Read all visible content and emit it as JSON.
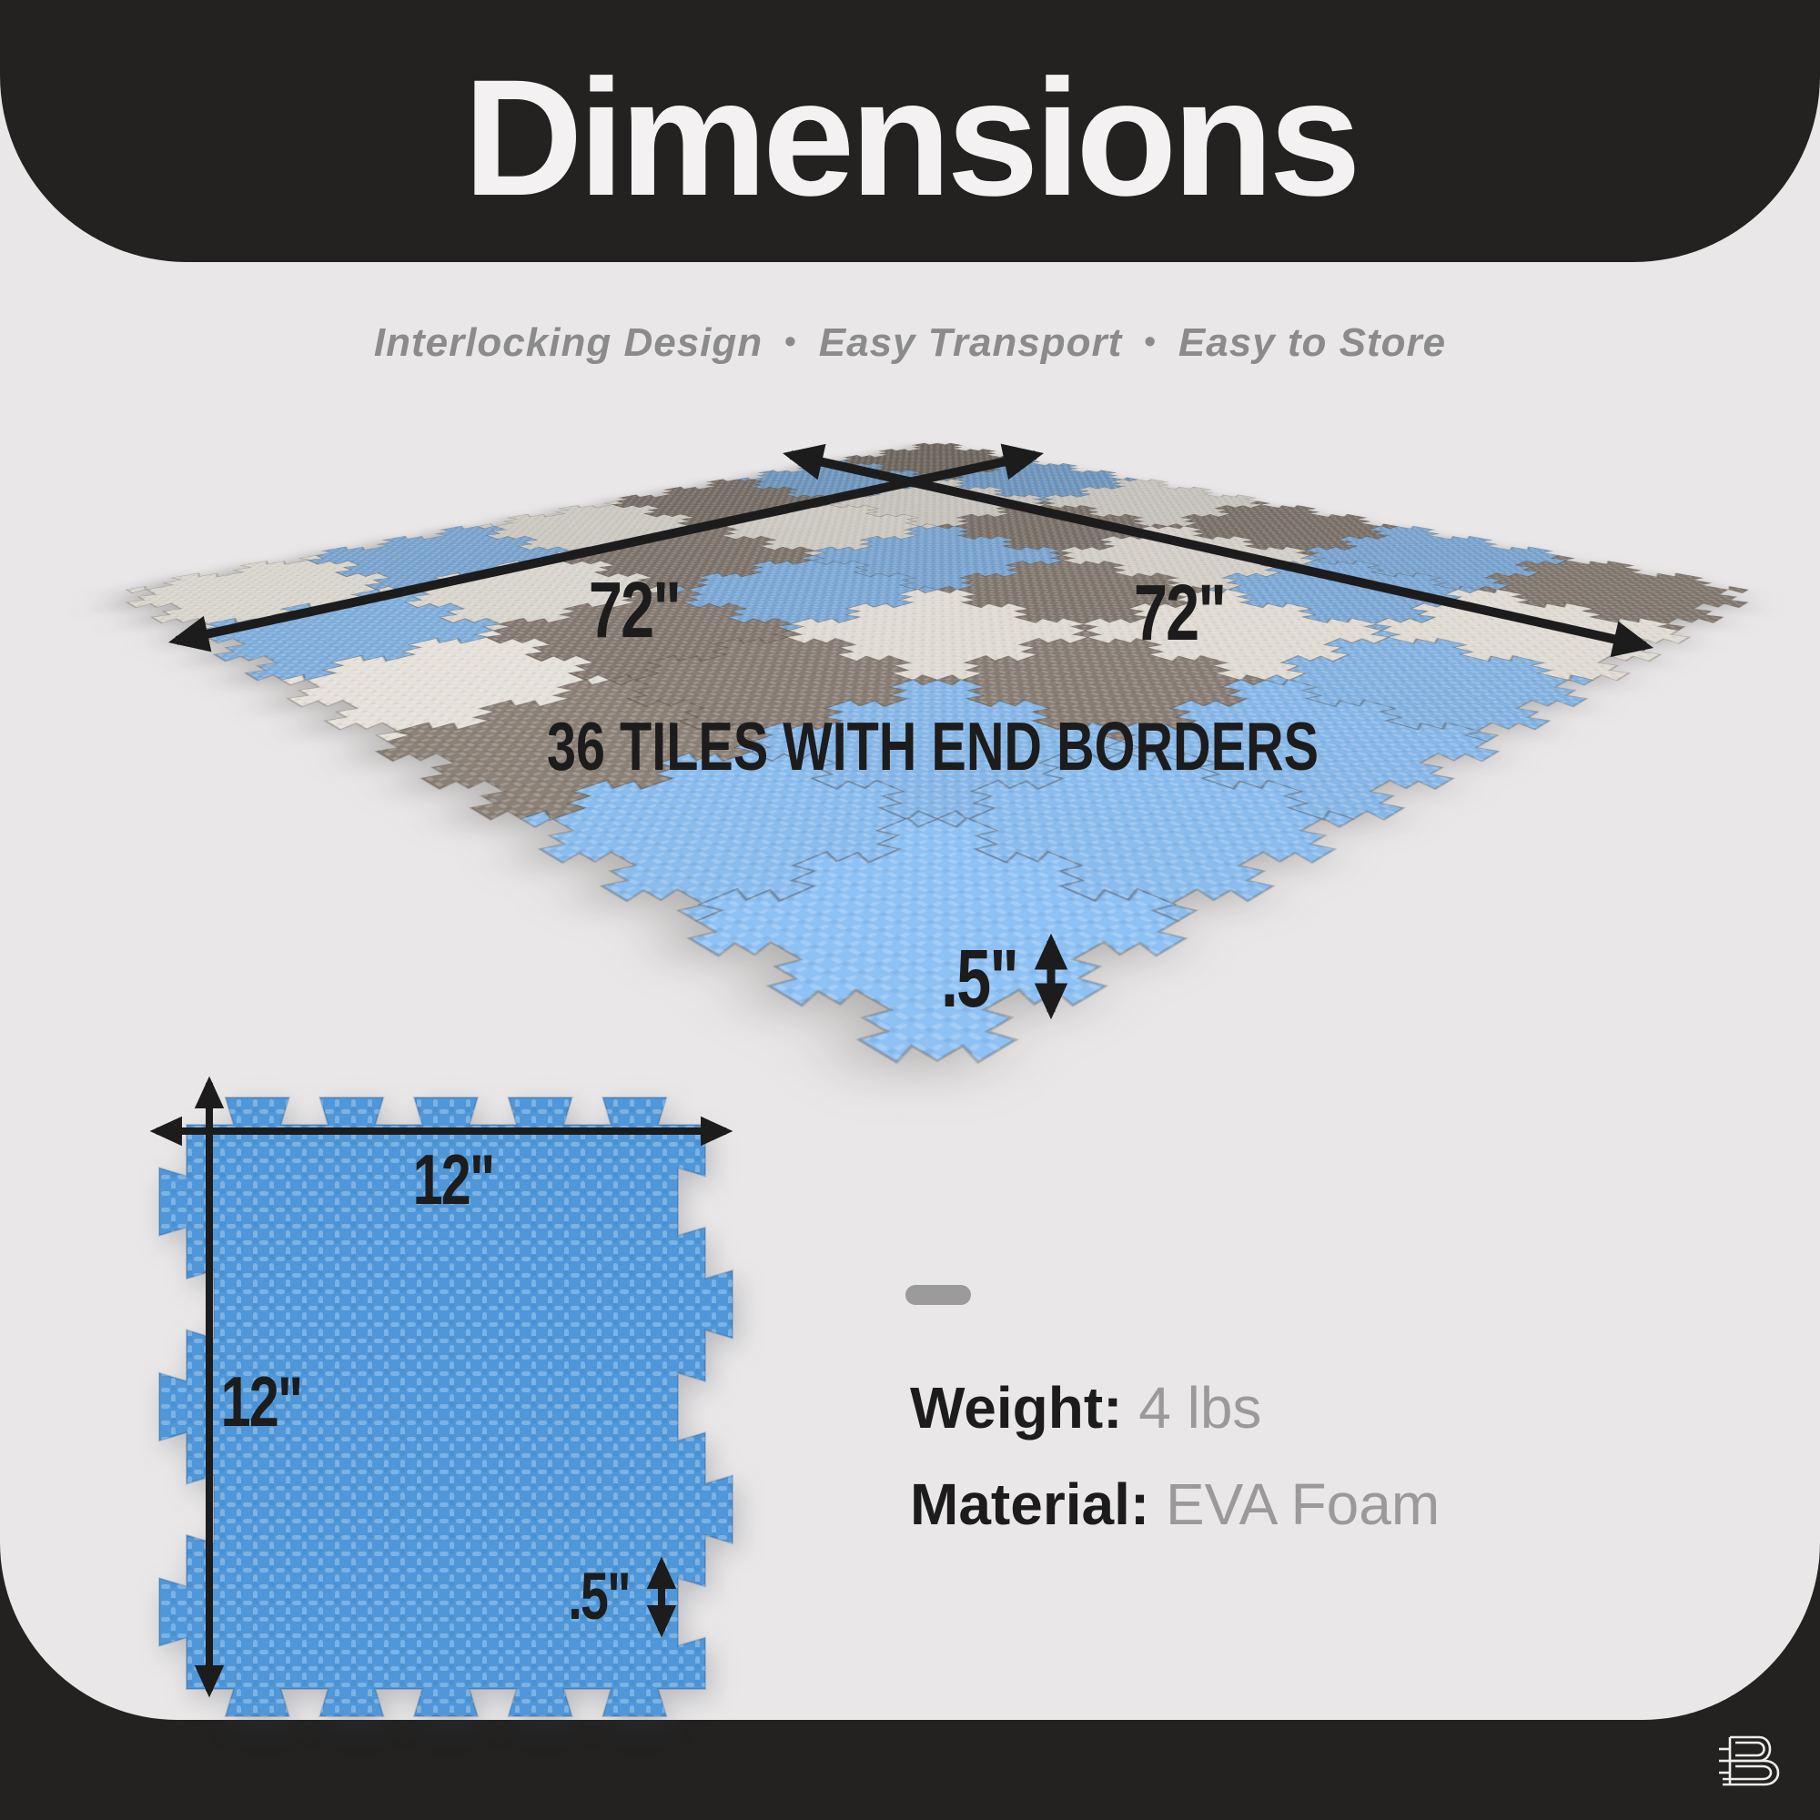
{
  "page": {
    "background": "#232221",
    "panel_background": "#e9e7e7",
    "accent_text": "#1d1c1c"
  },
  "header": {
    "title": "Dimensions"
  },
  "subtitle": {
    "separator": "•",
    "features": [
      "Interlocking Design",
      "Easy Transport",
      "Easy to Store"
    ]
  },
  "mat": {
    "width_label": "72\"",
    "depth_label": "72\"",
    "tiles_label": "36 TILES WITH END BORDERS",
    "thickness_label": ".5\"",
    "grid": [
      [
        "gray",
        "blue",
        "white",
        "gray",
        "blue",
        "gray"
      ],
      [
        "blue",
        "white",
        "gray",
        "white",
        "blue",
        "white"
      ],
      [
        "gray",
        "white",
        "blue",
        "gray",
        "white",
        "blue"
      ],
      [
        "white",
        "gray",
        "blue",
        "white",
        "gray",
        "blue"
      ],
      [
        "blue",
        "white",
        "gray",
        "gray",
        "blue",
        "blue"
      ],
      [
        "white",
        "blue",
        "white",
        "gray",
        "blue",
        "blue"
      ]
    ],
    "colors": {
      "blue": "#86b6e6",
      "white": "#eae6de",
      "gray": "#8b8077"
    }
  },
  "tile_diagram": {
    "width_label": "12\"",
    "height_label": "12\"",
    "thickness_label": ".5\"",
    "color": "#4f97d8"
  },
  "specs": {
    "weight_label": "Weight:",
    "weight_value": "4 lbs",
    "material_label": "Material:",
    "material_value": "EVA Foam"
  },
  "logo": {
    "letter": "B"
  }
}
